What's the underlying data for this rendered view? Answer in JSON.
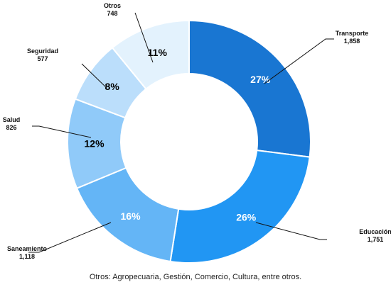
{
  "chart_data": {
    "type": "pie",
    "donut": true,
    "title": "",
    "slices": [
      {
        "label": "Transporte",
        "value_text": "1,858",
        "value": 1858,
        "pct_text": "27%",
        "color": "#1976d2",
        "pct_color": "#ffffff"
      },
      {
        "label": "Educación",
        "value_text": "1,751",
        "value": 1751,
        "pct_text": "26%",
        "color": "#2196f3",
        "pct_color": "#ffffff"
      },
      {
        "label": "Saneamiento",
        "value_text": "1,118",
        "value": 1118,
        "pct_text": "16%",
        "color": "#64b5f6",
        "pct_color": "#ffffff"
      },
      {
        "label": "Salud",
        "value_text": "826",
        "value": 826,
        "pct_text": "12%",
        "color": "#90caf9",
        "pct_color": "#000000"
      },
      {
        "label": "Seguridad",
        "value_text": "577",
        "value": 577,
        "pct_text": "8%",
        "color": "#bbdefb",
        "pct_color": "#000000"
      },
      {
        "label": "Otros",
        "value_text": "748",
        "value": 748,
        "pct_text": "11%",
        "color": "#e3f2fd",
        "pct_color": "#000000"
      }
    ],
    "legend": "none"
  },
  "footnote": "Otros: Agropecuaria, Gestión, Comercio, Cultura, entre otros."
}
